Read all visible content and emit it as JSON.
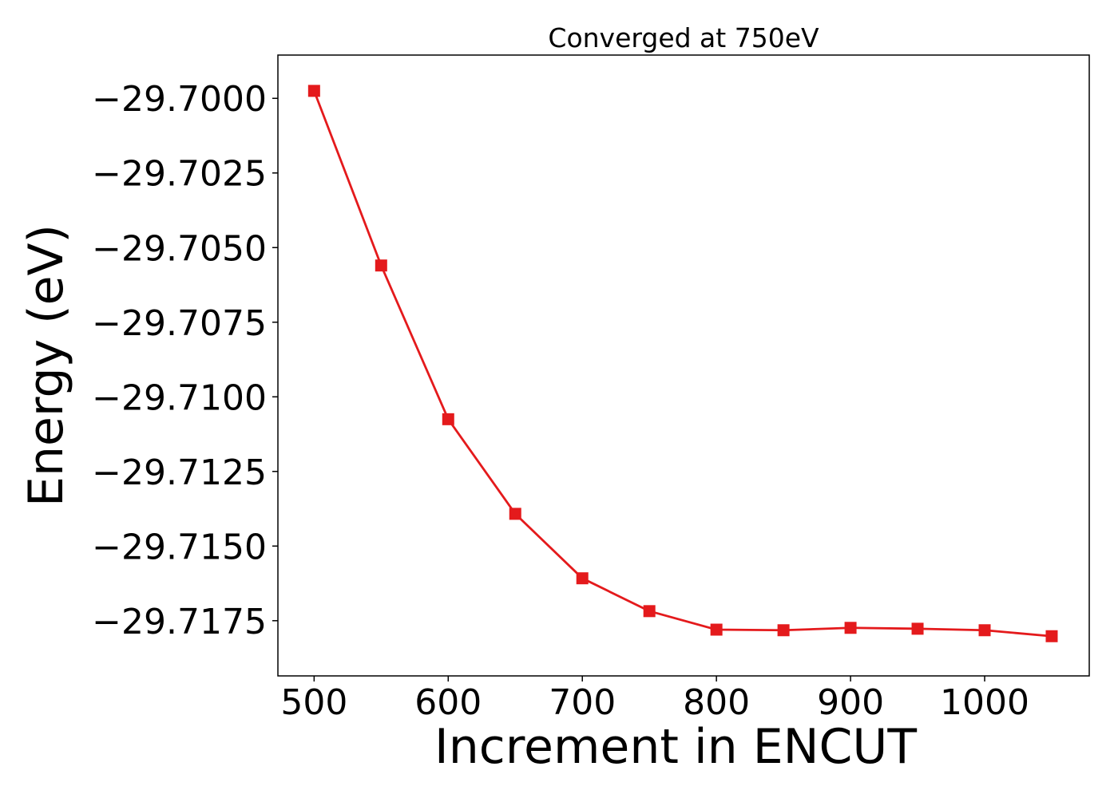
{
  "chart_data": {
    "type": "line",
    "title": "Converged at 750eV",
    "xlabel": "Increment in ENCUT",
    "ylabel": "Energy (eV)",
    "x": [
      500,
      550,
      600,
      650,
      700,
      750,
      800,
      850,
      900,
      950,
      1000,
      1050
    ],
    "series": [
      {
        "values": [
          -29.69975,
          -29.7056,
          -29.71075,
          -29.71392,
          -29.71608,
          -29.71718,
          -29.7178,
          -29.71782,
          -29.71774,
          -29.71777,
          -29.71782,
          -29.71802
        ],
        "color": "#e41a1c",
        "marker": "square"
      }
    ],
    "xlim": [
      473,
      1078
    ],
    "ylim": [
      -29.71935,
      -29.69855
    ],
    "xticks": [
      500,
      600,
      700,
      800,
      900,
      1000
    ],
    "xtick_labels": [
      "500",
      "600",
      "700",
      "800",
      "900",
      "1000"
    ],
    "yticks": [
      -29.7,
      -29.7025,
      -29.705,
      -29.7075,
      -29.71,
      -29.7125,
      -29.715,
      -29.7175
    ],
    "ytick_labels": [
      "−29.7000",
      "−29.7025",
      "−29.7050",
      "−29.7075",
      "−29.7100",
      "−29.7125",
      "−29.7150",
      "−29.7175"
    ],
    "grid": false,
    "legend": "none"
  }
}
